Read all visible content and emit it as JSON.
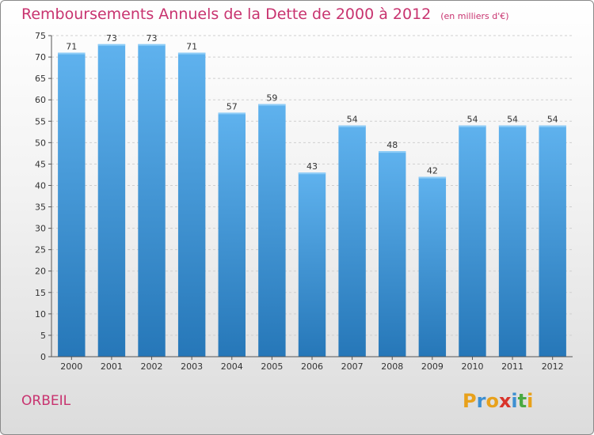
{
  "title": "Remboursements Annuels de la Dette de 2000 à 2012",
  "unit_note": "(en milliers d'€)",
  "commune": "ORBEIL",
  "logo": {
    "letters": [
      "P",
      "r",
      "o",
      "x",
      "i",
      "t",
      "i"
    ],
    "colors": [
      "#e8a11b",
      "#3d8fd1",
      "#e8a11b",
      "#d9342b",
      "#3d8fd1",
      "#49a942",
      "#e8a11b"
    ]
  },
  "colors": {
    "bar": "#3e97dc",
    "title": "#c8336f",
    "axis_text": "#333333"
  },
  "chart_data": {
    "type": "bar",
    "title": "Remboursements Annuels de la Dette de 2000 à 2012",
    "xlabel": "",
    "ylabel": "",
    "categories": [
      "2000",
      "2001",
      "2002",
      "2003",
      "2004",
      "2005",
      "2006",
      "2007",
      "2008",
      "2009",
      "2010",
      "2011",
      "2012"
    ],
    "values": [
      71,
      73,
      73,
      71,
      57,
      59,
      43,
      54,
      48,
      42,
      54,
      54,
      54
    ],
    "ylim": [
      0,
      75
    ],
    "yticks": [
      0,
      5,
      10,
      15,
      20,
      25,
      30,
      35,
      40,
      45,
      50,
      55,
      60,
      65,
      70,
      75
    ],
    "grid": true,
    "data_labels": true
  }
}
